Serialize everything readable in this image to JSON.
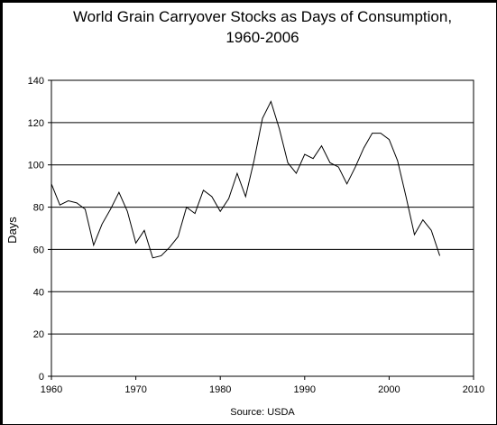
{
  "chart_data": {
    "type": "line",
    "title": "World Grain Carryover Stocks as Days of Consumption,",
    "subtitle": "1960-2006",
    "xlabel": "",
    "ylabel": "Days",
    "source": "Source: USDA",
    "xlim": [
      1960,
      2010
    ],
    "ylim": [
      0,
      140
    ],
    "x_ticks": [
      "1960",
      "1970",
      "1980",
      "1990",
      "2000",
      "2010"
    ],
    "y_ticks": [
      "0",
      "20",
      "40",
      "60",
      "80",
      "100",
      "120",
      "140"
    ],
    "grid": "horizontal",
    "legend": "none",
    "line_color": "#000000",
    "series": [
      {
        "x": [
          1960,
          1961,
          1962,
          1963,
          1964,
          1965,
          1966,
          1967,
          1968,
          1969,
          1970,
          1971,
          1972,
          1973,
          1974,
          1975,
          1976,
          1977,
          1978,
          1979,
          1980,
          1981,
          1982,
          1983,
          1984,
          1985,
          1986,
          1987,
          1988,
          1989,
          1990,
          1991,
          1992,
          1993,
          1994,
          1995,
          1996,
          1997,
          1998,
          1999,
          2000,
          2001,
          2002,
          2003,
          2004,
          2005,
          2006
        ],
        "values": [
          91,
          81,
          83,
          82,
          79,
          62,
          72,
          79,
          87,
          78,
          63,
          69,
          56,
          57,
          61,
          66,
          80,
          77,
          88,
          85,
          78,
          84,
          96,
          85,
          102,
          122,
          130,
          117,
          101,
          96,
          105,
          103,
          109,
          101,
          99,
          91,
          99,
          108,
          115,
          115,
          112,
          102,
          85,
          67,
          74,
          69,
          57
        ]
      }
    ]
  }
}
